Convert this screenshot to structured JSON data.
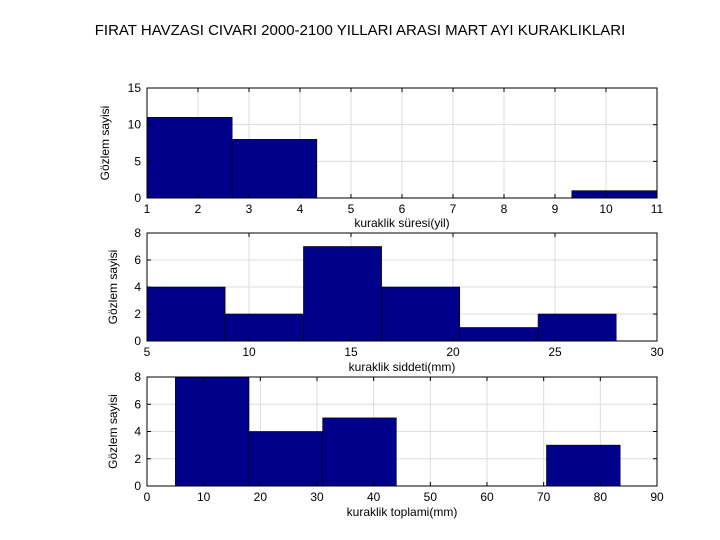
{
  "title": "FIRAT HAVZASI CIVARI 2000-2100 YILLARI ARASI MART AYI KURAKLIKLARI",
  "colors": {
    "bar_fill": "#00008b",
    "bar_edge": "#000000",
    "grid": "#dddddd",
    "axis": "#000000"
  },
  "chart_data": [
    {
      "type": "bar",
      "title": "",
      "xlabel": "kuraklik süresi(yil)",
      "ylabel": "Gözlem sayisi",
      "xlim": [
        1,
        11
      ],
      "ylim": [
        0,
        15
      ],
      "xticks": [
        1,
        2,
        3,
        4,
        5,
        6,
        7,
        8,
        9,
        10,
        11
      ],
      "yticks": [
        0,
        5,
        10,
        15
      ],
      "bins": [
        {
          "x0": 1.0,
          "x1": 2.67,
          "value": 11
        },
        {
          "x0": 2.67,
          "x1": 4.33,
          "value": 8
        },
        {
          "x0": 4.33,
          "x1": 6.0,
          "value": 0
        },
        {
          "x0": 6.0,
          "x1": 7.67,
          "value": 0
        },
        {
          "x0": 7.67,
          "x1": 9.33,
          "value": 0
        },
        {
          "x0": 9.33,
          "x1": 11.0,
          "value": 1
        }
      ]
    },
    {
      "type": "bar",
      "title": "",
      "xlabel": "kuraklik siddeti(mm)",
      "ylabel": "Gözlem sayisi",
      "xlim": [
        5,
        30
      ],
      "ylim": [
        0,
        8
      ],
      "xticks": [
        5,
        10,
        15,
        20,
        25,
        30
      ],
      "yticks": [
        0,
        2,
        4,
        6,
        8
      ],
      "bins": [
        {
          "x0": 5.0,
          "x1": 8.83,
          "value": 4
        },
        {
          "x0": 8.83,
          "x1": 12.67,
          "value": 2
        },
        {
          "x0": 12.67,
          "x1": 16.5,
          "value": 7
        },
        {
          "x0": 16.5,
          "x1": 20.33,
          "value": 4
        },
        {
          "x0": 20.33,
          "x1": 24.17,
          "value": 1
        },
        {
          "x0": 24.17,
          "x1": 28.0,
          "value": 2
        }
      ]
    },
    {
      "type": "bar",
      "title": "",
      "xlabel": "kuraklik toplami(mm)",
      "ylabel": "Gözlem sayisi",
      "xlim": [
        0,
        90
      ],
      "ylim": [
        0,
        8
      ],
      "xticks": [
        0,
        10,
        20,
        30,
        40,
        50,
        60,
        70,
        80,
        90
      ],
      "yticks": [
        0,
        2,
        4,
        6,
        8
      ],
      "bins": [
        {
          "x0": 5.0,
          "x1": 18.0,
          "value": 8
        },
        {
          "x0": 18.0,
          "x1": 31.0,
          "value": 4
        },
        {
          "x0": 31.0,
          "x1": 44.0,
          "value": 5
        },
        {
          "x0": 44.0,
          "x1": 57.0,
          "value": 0
        },
        {
          "x0": 57.0,
          "x1": 70.5,
          "value": 0
        },
        {
          "x0": 70.5,
          "x1": 83.5,
          "value": 3
        }
      ]
    }
  ]
}
